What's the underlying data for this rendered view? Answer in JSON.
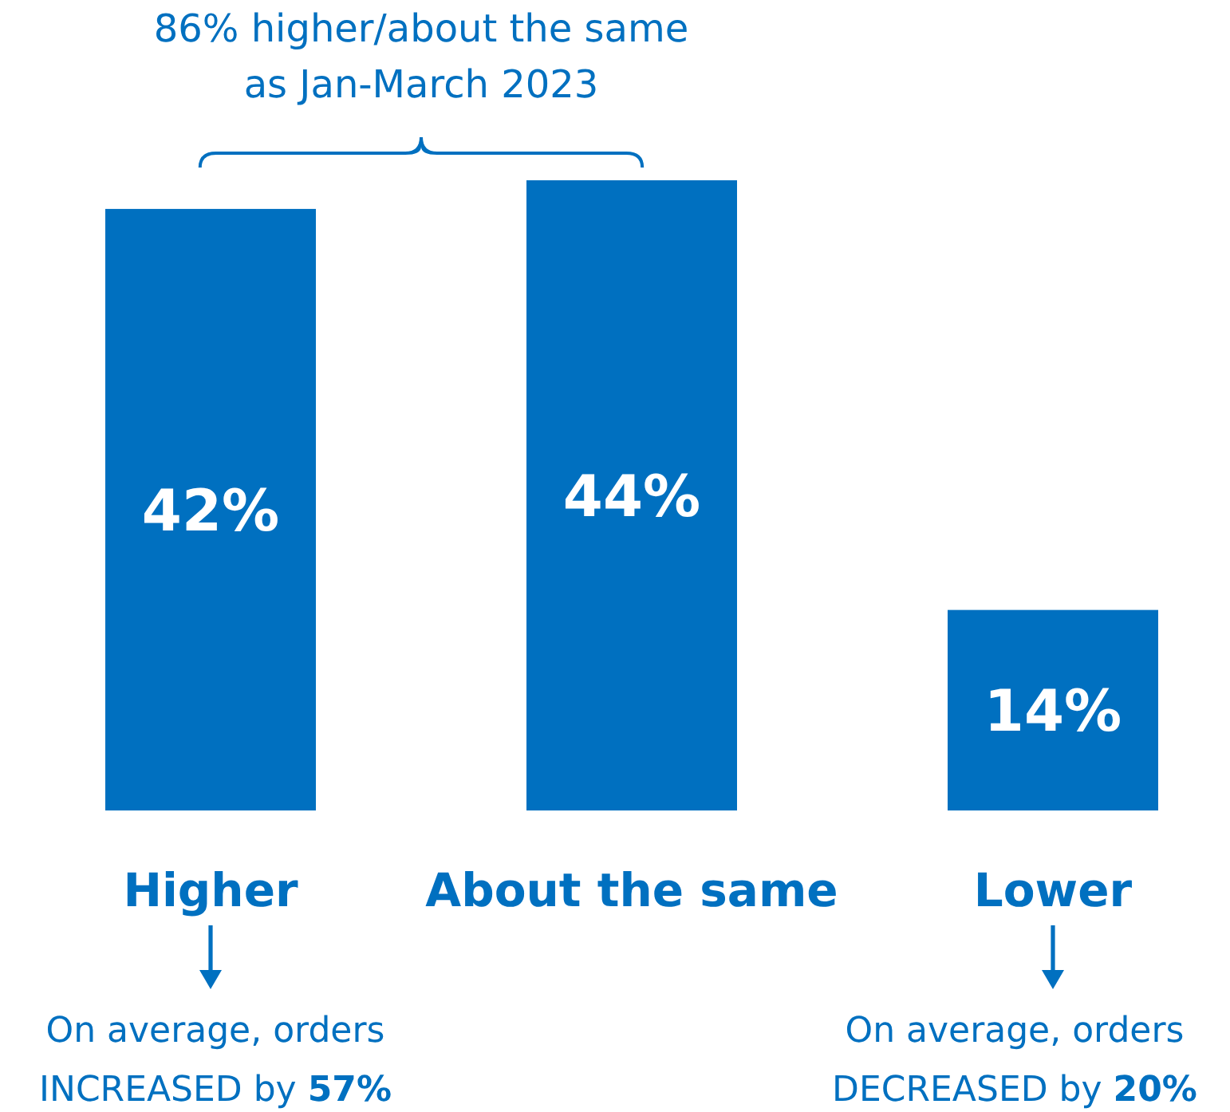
{
  "chart_data": {
    "type": "bar",
    "categories": [
      "Higher",
      "About the same",
      "Lower"
    ],
    "values": [
      42,
      44,
      14
    ],
    "value_labels": [
      "42%",
      "44%",
      "14%"
    ],
    "color": "#0070c0",
    "tick_labels": "x",
    "annotations": [
      "86% higher/about the same as Jan-March 2023",
      "On average, orders INCREASED by 57%",
      "On average, orders DECREASED by 20%"
    ]
  }
}
